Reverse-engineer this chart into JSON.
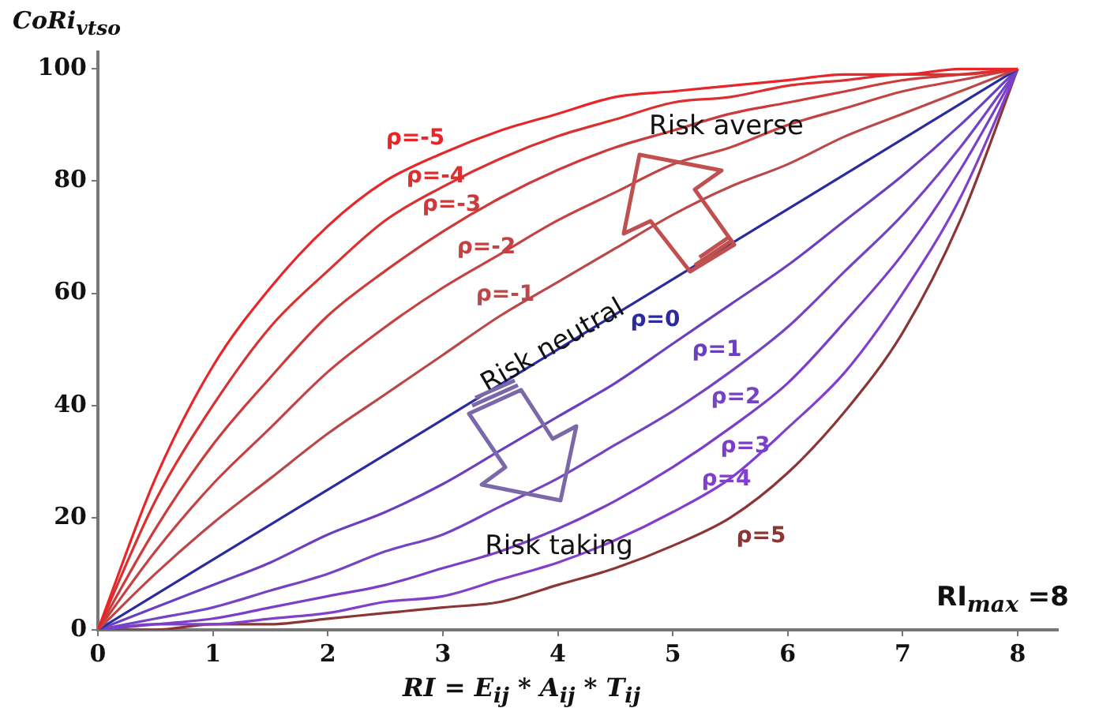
{
  "chart_data": {
    "type": "line",
    "xlabel": "RI = E$_{ij}$ * A$_{ij}$ * T$_{ij}$",
    "ylabel": "CoRi$_{vtso}$",
    "x": [
      0,
      0.5,
      1,
      1.5,
      2,
      2.5,
      3,
      3.5,
      4,
      4.5,
      5,
      5.5,
      6,
      6.5,
      7,
      7.5,
      8
    ],
    "series": [
      {
        "name": "ρ=-5",
        "color": "#e8262a",
        "values": [
          0,
          27,
          47,
          61,
          72,
          80,
          85,
          89,
          92,
          95,
          96,
          97,
          98,
          99,
          99,
          100,
          100
        ]
      },
      {
        "name": "ρ=-4",
        "color": "#d93030",
        "values": [
          0,
          23,
          40,
          54,
          64,
          73,
          79,
          84,
          88,
          91,
          94,
          95,
          97,
          98,
          99,
          99,
          100
        ]
      },
      {
        "name": "ρ=-3",
        "color": "#cc3a3a",
        "values": [
          0,
          18,
          33,
          45,
          56,
          64,
          71,
          77,
          82,
          86,
          89,
          92,
          94,
          96,
          98,
          99,
          100
        ]
      },
      {
        "name": "ρ=-2",
        "color": "#c44242",
        "values": [
          0,
          14,
          26,
          36,
          46,
          54,
          61,
          67,
          73,
          78,
          83,
          86,
          90,
          93,
          96,
          98,
          100
        ]
      },
      {
        "name": "ρ=-1",
        "color": "#bb4848",
        "values": [
          0,
          10,
          19,
          27,
          35,
          42,
          49,
          56,
          62,
          68,
          74,
          79,
          83,
          88,
          92,
          96,
          100
        ]
      },
      {
        "name": "ρ=0",
        "color": "#2b2ba0",
        "x": [
          0,
          8
        ],
        "values": [
          0,
          100
        ]
      },
      {
        "name": "ρ=1",
        "color": "#6a40c0",
        "values": [
          0,
          4,
          8,
          12,
          17,
          21,
          26,
          32,
          38,
          44,
          51,
          58,
          65,
          73,
          81,
          90,
          100
        ]
      },
      {
        "name": "ρ=2",
        "color": "#7444c4",
        "values": [
          0,
          2,
          4,
          7,
          10,
          14,
          17,
          22,
          27,
          33,
          39,
          46,
          54,
          64,
          74,
          86,
          100
        ]
      },
      {
        "name": "ρ=3",
        "color": "#7a3ec8",
        "values": [
          0,
          1,
          2,
          4,
          6,
          8,
          11,
          14,
          18,
          23,
          29,
          36,
          44,
          55,
          67,
          82,
          100
        ]
      },
      {
        "name": "ρ=4",
        "color": "#8040cc",
        "values": [
          0,
          1,
          1,
          2,
          3,
          5,
          6,
          9,
          12,
          16,
          21,
          27,
          36,
          46,
          60,
          77,
          100
        ]
      },
      {
        "name": "ρ=5",
        "color": "#8b3535",
        "values": [
          0,
          0,
          1,
          1,
          2,
          3,
          4,
          5,
          8,
          11,
          15,
          20,
          28,
          39,
          53,
          73,
          100
        ]
      }
    ],
    "xlim": [
      0,
      8.35
    ],
    "xticks": [
      0,
      1,
      2,
      3,
      4,
      5,
      6,
      7,
      8
    ],
    "ylim": [
      0,
      103
    ],
    "yticks": [
      0,
      20,
      40,
      60,
      80,
      100
    ],
    "grid": false,
    "legend": false,
    "marker": "none",
    "line_style": "solid",
    "annotations": [
      "Risk averse",
      "Risk neutral",
      "Risk taking",
      "RI$_{max}$ =8"
    ]
  }
}
